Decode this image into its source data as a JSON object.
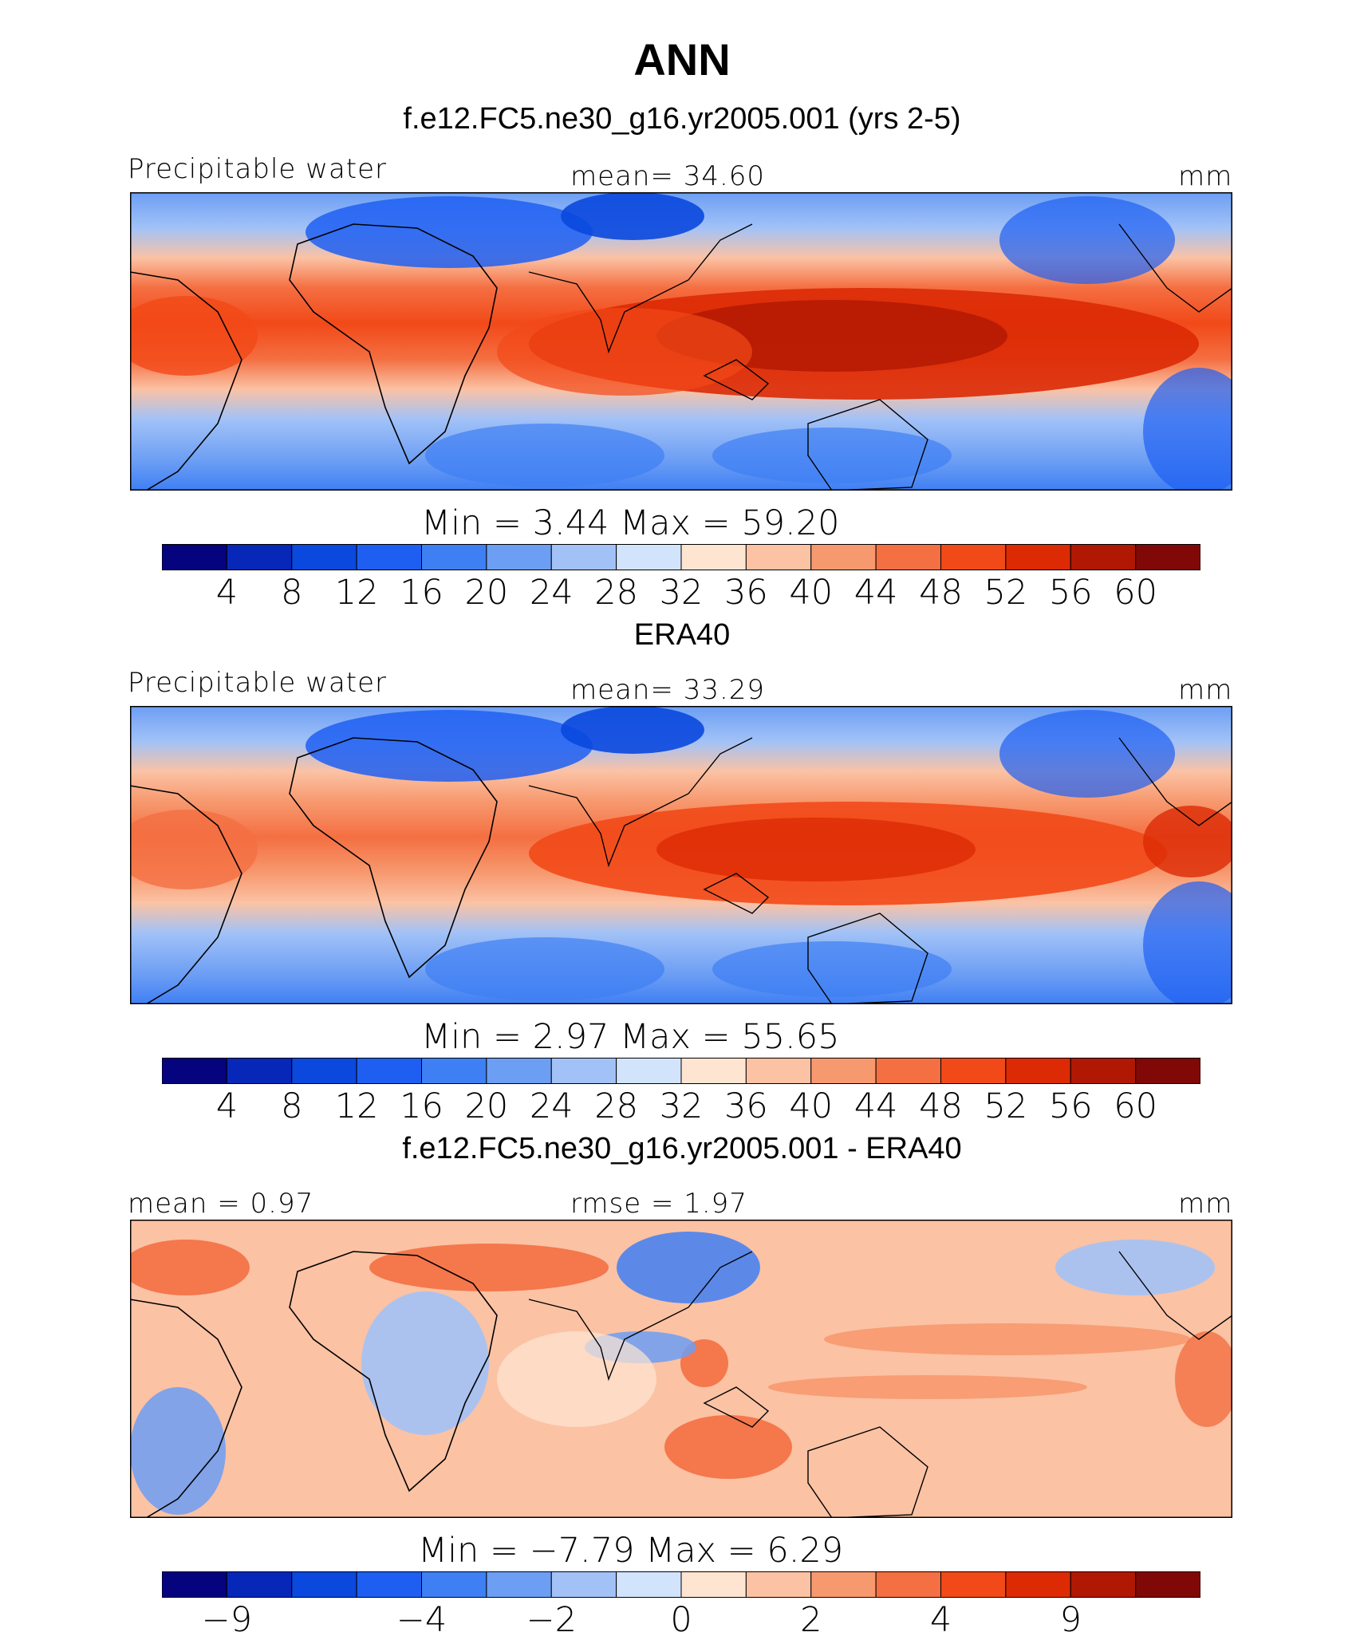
{
  "title": "ANN",
  "colors": [
    "#05037e",
    "#0727b8",
    "#0a48de",
    "#1e5ff2",
    "#3f7ff4",
    "#6c9ef4",
    "#a2c2f7",
    "#d2e4fb",
    "#fde5d2",
    "#fbc2a4",
    "#f7996f",
    "#f46f42",
    "#f24918",
    "#dc2a05",
    "#b01803",
    "#800806"
  ],
  "panels": [
    {
      "title": "f.e12.FC5.ne30_g16.yr2005.001 (yrs 2-5)",
      "label_left": "Precipitable water",
      "label_mid": "mean=   34.60",
      "units": "mm",
      "min_max": "Min  =      3.44  Max  =     59.20",
      "colorbar_labels": [
        "4",
        "8",
        "12",
        "16",
        "20",
        "24",
        "28",
        "32",
        "36",
        "40",
        "44",
        "48",
        "52",
        "56",
        "60"
      ],
      "field": "precipitable_water",
      "stats": {
        "mean": 34.6,
        "min": 3.44,
        "max": 59.2
      }
    },
    {
      "title": "ERA40",
      "label_left": "Precipitable water",
      "label_mid": "mean=   33.29",
      "units": "mm",
      "min_max": "Min  =      2.97  Max  =     55.65",
      "colorbar_labels": [
        "4",
        "8",
        "12",
        "16",
        "20",
        "24",
        "28",
        "32",
        "36",
        "40",
        "44",
        "48",
        "52",
        "56",
        "60"
      ],
      "field": "precipitable_water",
      "stats": {
        "mean": 33.29,
        "min": 2.97,
        "max": 55.65
      }
    },
    {
      "title": "f.e12.FC5.ne30_g16.yr2005.001 - ERA40",
      "label_left": "mean  =     0.97",
      "label_mid": "rmse  =     1.97",
      "units": "mm",
      "min_max": "Min  =    −7.79  Max  =       6.29",
      "colorbar_labels": [
        "−9",
        "−4",
        "−2",
        "0",
        "2",
        "4",
        "9"
      ],
      "field": "difference",
      "stats": {
        "mean": 0.97,
        "rmse": 1.97,
        "min": -7.79,
        "max": 6.29
      }
    }
  ]
}
